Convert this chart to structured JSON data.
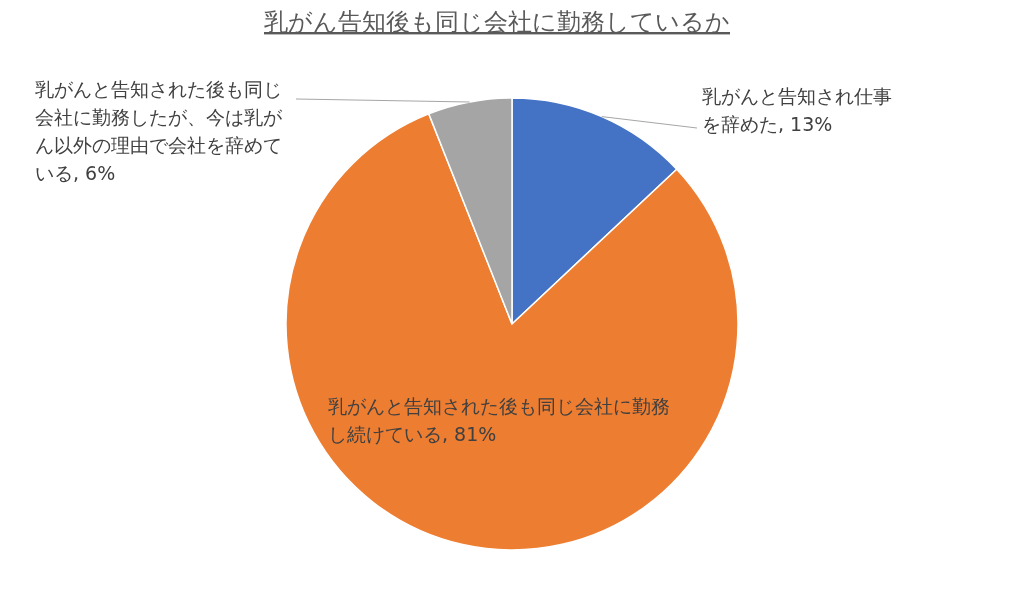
{
  "chart_data": {
    "type": "pie",
    "title": "乳がん告知後も同じ会社に勤務しているか",
    "categories": [
      "乳がんと告知され仕事を辞めた",
      "乳がんと告知された後も同じ会社に勤務し続けている",
      "乳がんと告知された後も同じ会社に勤務したが、今は乳がん以外の理由で会社を辞めている"
    ],
    "values": [
      13,
      81,
      6
    ],
    "colors": [
      "#4472c4",
      "#ed7d31",
      "#a5a5a5"
    ],
    "value_labels": [
      "13%",
      "81%",
      "6%"
    ]
  }
}
